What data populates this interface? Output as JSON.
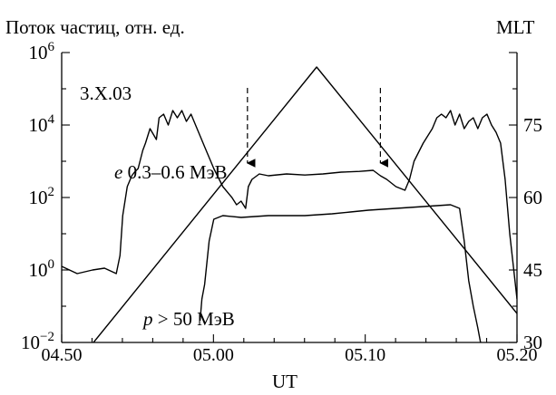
{
  "chart_data": {
    "type": "line",
    "ylabel": "Поток частиц, отн. ед.",
    "y2label": "MLT",
    "xlabel": "UT",
    "date_label": "3.X.03",
    "x_ticks": [
      "04.50",
      "05.00",
      "05.10",
      "05.20"
    ],
    "xlim": [
      4.833,
      5.333
    ],
    "y_log_range": [
      -2,
      6
    ],
    "y_ticks": [
      {
        "base": "10",
        "exp": "6",
        "logv": 6
      },
      {
        "base": "10",
        "exp": "4",
        "logv": 4
      },
      {
        "base": "10",
        "exp": "2",
        "logv": 2
      },
      {
        "base": "10",
        "exp": "0",
        "logv": 0
      },
      {
        "base": "10",
        "exp": "−2",
        "logv": -2
      }
    ],
    "y2lim": [
      30,
      90
    ],
    "y2_ticks": [
      "75",
      "60",
      "45",
      "30"
    ],
    "annotation_arrows_ut": [
      5.037,
      5.183
    ],
    "series": [
      {
        "name": "e 0.3–0.6 МэВ",
        "axis": "left",
        "x": [
          4.833,
          4.85,
          4.867,
          4.88,
          4.893,
          4.897,
          4.9,
          4.905,
          4.91,
          4.913,
          4.917,
          4.922,
          4.925,
          4.93,
          4.937,
          4.94,
          4.945,
          4.95,
          4.955,
          4.96,
          4.965,
          4.97,
          4.975,
          4.98,
          4.99,
          5.0,
          5.01,
          5.02,
          5.025,
          5.03,
          5.035,
          5.038,
          5.042,
          5.05,
          5.06,
          5.08,
          5.1,
          5.12,
          5.14,
          5.16,
          5.175,
          5.183,
          5.19,
          5.2,
          5.21,
          5.215,
          5.22,
          5.23,
          5.24,
          5.245,
          5.25,
          5.255,
          5.26,
          5.265,
          5.27,
          5.275,
          5.28,
          5.285,
          5.29,
          5.295,
          5.3,
          5.305,
          5.31,
          5.315,
          5.32,
          5.325,
          5.333
        ],
        "y": [
          0.1,
          -0.1,
          0.0,
          0.05,
          -0.1,
          0.4,
          1.5,
          2.3,
          2.6,
          2.7,
          2.8,
          3.3,
          3.5,
          3.9,
          3.6,
          4.2,
          4.3,
          4.0,
          4.4,
          4.2,
          4.4,
          4.1,
          4.3,
          4.0,
          3.4,
          2.8,
          2.3,
          2.0,
          1.8,
          1.9,
          1.7,
          2.3,
          2.5,
          2.65,
          2.6,
          2.65,
          2.62,
          2.65,
          2.7,
          2.72,
          2.75,
          2.6,
          2.5,
          2.3,
          2.2,
          2.5,
          3.0,
          3.5,
          3.9,
          4.2,
          4.3,
          4.2,
          4.4,
          4.0,
          4.3,
          3.9,
          4.1,
          4.2,
          3.9,
          4.2,
          4.3,
          4.0,
          3.8,
          3.5,
          2.5,
          1.0,
          -0.8
        ]
      },
      {
        "name": "p > 50 МэВ",
        "axis": "left",
        "x": [
          4.985,
          4.987,
          4.99,
          4.995,
          5.0,
          5.01,
          5.03,
          5.06,
          5.1,
          5.13,
          5.15,
          5.17,
          5.2,
          5.23,
          5.26,
          5.27,
          5.275,
          5.28,
          5.285,
          5.29,
          5.293
        ],
        "y": [
          -1.4,
          -0.8,
          -0.4,
          0.8,
          1.4,
          1.5,
          1.45,
          1.5,
          1.5,
          1.55,
          1.6,
          1.65,
          1.7,
          1.75,
          1.8,
          1.7,
          0.8,
          -0.3,
          -1.0,
          -1.6,
          -2.0
        ]
      },
      {
        "name": "MLT",
        "axis": "right",
        "x": [
          4.868,
          5.113,
          5.333
        ],
        "y": [
          30,
          87,
          36
        ]
      }
    ]
  },
  "labels": {
    "e_label": "e",
    "e_label_rest": " 0.3–0.6 МэВ",
    "p_label": "p",
    "p_label_rest": " > 50 МэВ"
  }
}
